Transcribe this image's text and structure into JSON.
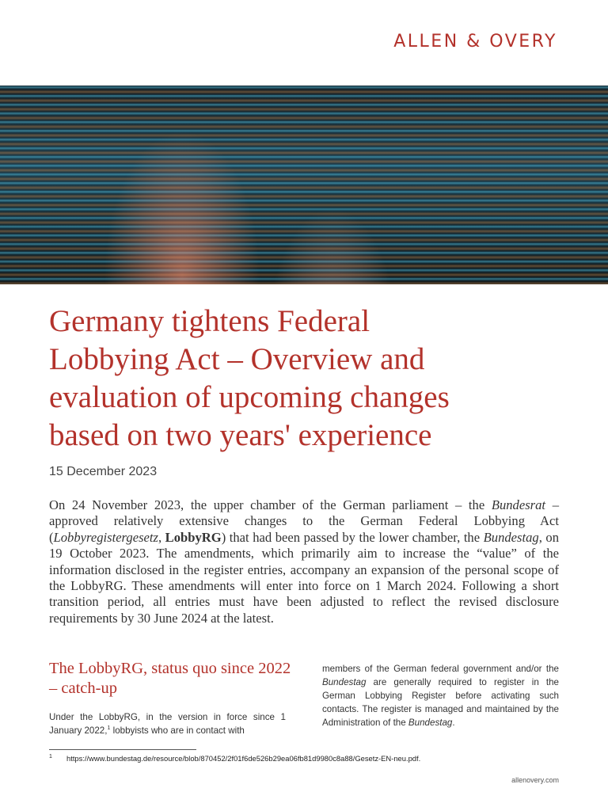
{
  "header": {
    "logo": "ALLEN & OVERY"
  },
  "title": {
    "lines": [
      "Germany tightens Federal",
      "Lobbying Act – Overview and",
      "evaluation of upcoming changes",
      "based on two years' experience"
    ]
  },
  "date": "15 December 2023",
  "intro": [
    "On 24 November 2023, the upper chamber of the German parliament – the ",
    "Bundesrat",
    " – approved relatively extensive changes to the German Federal Lobbying Act (",
    "Lobbyregistergesetz",
    ", ",
    "LobbyRG",
    ") that had been passed by the lower chamber, the ",
    "Bundestag",
    ", on 19 October 2023. The amendments, which primarily aim to increase the “value” of the information disclosed in the register entries, accompany an expansion of the personal scope of the LobbyRG. These amendments will enter into force on 1 March 2024. Following a short transition period, all entries must have been adjusted to reflect the revised disclosure requirements by 30 June 2024 at the latest."
  ],
  "section": {
    "heading": "The LobbyRG, status quo since 2022 – catch-up",
    "left": [
      "Under the LobbyRG, in the version in force since 1 January 2022,",
      "1",
      " lobbyists who are in contact with"
    ],
    "right": [
      "members of the German federal government and/or the ",
      "Bundestag",
      " are generally required to register in the German Lobbying Register before activating such contacts. The register is managed and maintained by the Administration of the ",
      "Bundestag",
      "."
    ]
  },
  "footnote": {
    "number": "1",
    "text": "https://www.bundestag.de/resource/blob/870452/2f01f6de526b29ea06fb81d9980c8a88/Gesetz-EN-neu.pdf."
  },
  "footer": {
    "site": "allenovery.com"
  }
}
